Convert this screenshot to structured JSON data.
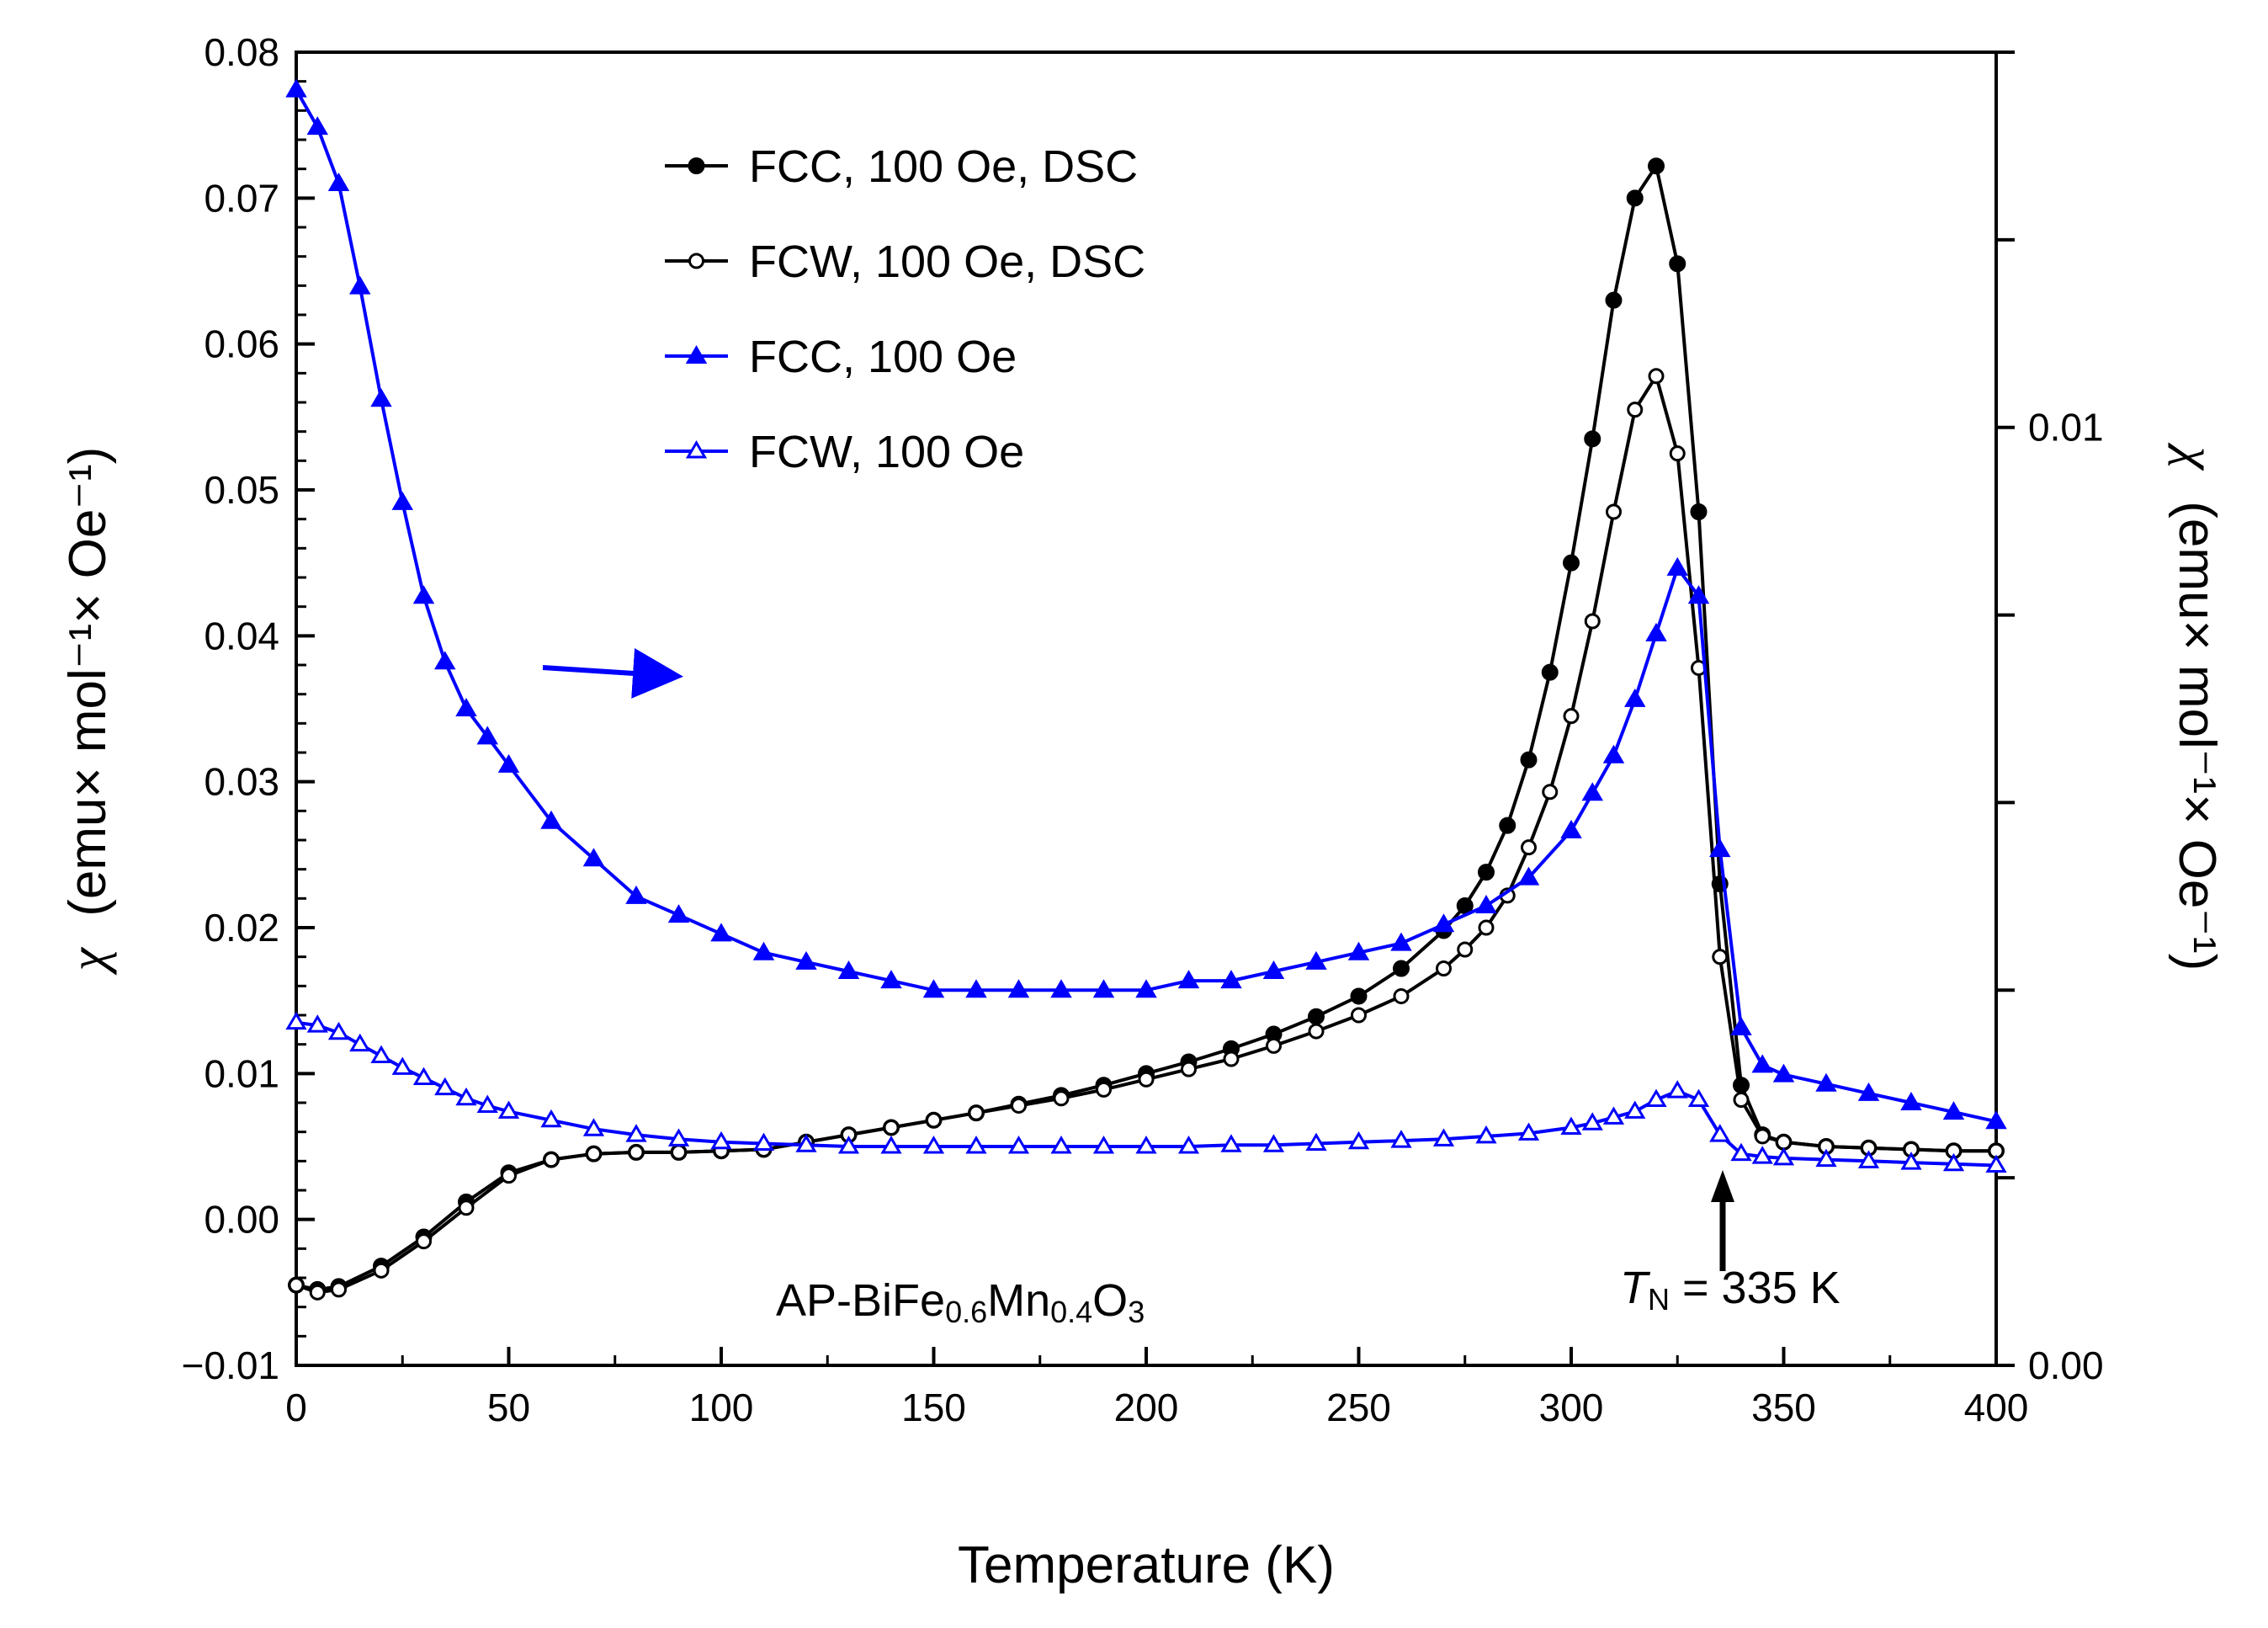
{
  "chart_data": {
    "type": "line",
    "title": "",
    "xlabel": "Temperature (K)",
    "ylabel_left": {
      "symbol": "χ",
      "text": "(emu× mol⁻¹× Oe⁻¹)"
    },
    "ylabel_right": {
      "symbol": "χ",
      "text": "(emu× mol⁻¹× Oe⁻¹)"
    },
    "xlim": [
      0,
      400
    ],
    "ylim_left": [
      -0.01,
      0.08
    ],
    "ylim_right": [
      0,
      0.014
    ],
    "xticks": [
      0,
      50,
      100,
      150,
      200,
      250,
      300,
      350,
      400
    ],
    "xtick_labels": [
      "0",
      "50",
      "100",
      "150",
      "200",
      "250",
      "300",
      "350",
      "400"
    ],
    "yticks_left": [
      -0.01,
      0,
      0.01,
      0.02,
      0.03,
      0.04,
      0.05,
      0.06,
      0.07,
      0.08
    ],
    "ytick_labels_left": [
      "−0.01",
      "0.00",
      "0.01",
      "0.02",
      "0.03",
      "0.04",
      "0.05",
      "0.06",
      "0.07",
      "0.08"
    ],
    "yticks_right": [
      0,
      0.01
    ],
    "ytick_labels_right": [
      "0.00",
      "0.01"
    ],
    "grid": false,
    "legend_position": "top-left",
    "series": [
      {
        "name": "FCC, 100 Oe, DSC",
        "axis": "left",
        "color": "#000000",
        "marker": "filled-circle",
        "x": [
          0,
          5,
          10,
          20,
          30,
          40,
          50,
          60,
          70,
          80,
          90,
          100,
          110,
          120,
          130,
          140,
          150,
          160,
          170,
          180,
          190,
          200,
          210,
          220,
          230,
          240,
          250,
          260,
          270,
          275,
          280,
          285,
          290,
          295,
          300,
          305,
          310,
          315,
          320,
          325,
          330,
          335,
          340,
          345,
          350,
          360,
          370,
          380,
          390,
          400
        ],
        "y": [
          -0.0045,
          -0.0048,
          -0.0046,
          -0.0032,
          -0.0012,
          0.0012,
          0.0032,
          0.0041,
          0.0045,
          0.0046,
          0.0046,
          0.0047,
          0.0048,
          0.0053,
          0.0058,
          0.0063,
          0.0068,
          0.0073,
          0.0079,
          0.0085,
          0.0092,
          0.01,
          0.0108,
          0.0117,
          0.0127,
          0.0139,
          0.0153,
          0.0172,
          0.0198,
          0.0215,
          0.0238,
          0.027,
          0.0315,
          0.0375,
          0.045,
          0.0535,
          0.063,
          0.07,
          0.0722,
          0.0655,
          0.0485,
          0.023,
          0.0092,
          0.0058,
          0.0053,
          0.005,
          0.0049,
          0.0048,
          0.0047,
          0.0047
        ]
      },
      {
        "name": "FCW, 100 Oe, DSC",
        "axis": "left",
        "color": "#000000",
        "marker": "open-circle",
        "x": [
          0,
          5,
          10,
          20,
          30,
          40,
          50,
          60,
          70,
          80,
          90,
          100,
          110,
          120,
          130,
          140,
          150,
          160,
          170,
          180,
          190,
          200,
          210,
          220,
          230,
          240,
          250,
          260,
          270,
          275,
          280,
          285,
          290,
          295,
          300,
          305,
          310,
          315,
          320,
          325,
          330,
          335,
          340,
          345,
          350,
          360,
          370,
          380,
          390,
          400
        ],
        "y": [
          -0.0045,
          -0.005,
          -0.0048,
          -0.0035,
          -0.0015,
          0.0008,
          0.003,
          0.0041,
          0.0045,
          0.0046,
          0.0046,
          0.0047,
          0.0048,
          0.0053,
          0.0058,
          0.0063,
          0.0068,
          0.0073,
          0.0078,
          0.0083,
          0.0089,
          0.0096,
          0.0103,
          0.011,
          0.0119,
          0.0129,
          0.014,
          0.0153,
          0.0172,
          0.0185,
          0.02,
          0.0222,
          0.0255,
          0.0293,
          0.0345,
          0.041,
          0.0485,
          0.0555,
          0.0578,
          0.0525,
          0.0378,
          0.018,
          0.0082,
          0.0057,
          0.0053,
          0.005,
          0.0049,
          0.0048,
          0.0047,
          0.0047
        ]
      },
      {
        "name": "FCC, 100 Oe",
        "axis": "right",
        "color": "#0000ff",
        "marker": "filled-triangle",
        "x": [
          0,
          5,
          10,
          15,
          20,
          25,
          30,
          35,
          40,
          45,
          50,
          60,
          70,
          80,
          90,
          100,
          110,
          120,
          130,
          140,
          150,
          160,
          170,
          180,
          190,
          200,
          210,
          220,
          230,
          240,
          250,
          260,
          270,
          280,
          290,
          300,
          305,
          310,
          315,
          320,
          325,
          330,
          335,
          340,
          345,
          350,
          360,
          370,
          380,
          390,
          400
        ],
        "y": [
          0.0136,
          0.0132,
          0.0126,
          0.0115,
          0.0103,
          0.0092,
          0.0082,
          0.0075,
          0.007,
          0.0067,
          0.0064,
          0.0058,
          0.0054,
          0.005,
          0.0048,
          0.0046,
          0.0044,
          0.0043,
          0.0042,
          0.0041,
          0.004,
          0.004,
          0.004,
          0.004,
          0.004,
          0.004,
          0.0041,
          0.0041,
          0.0042,
          0.0043,
          0.0044,
          0.0045,
          0.0047,
          0.0049,
          0.0052,
          0.0057,
          0.0061,
          0.0065,
          0.0071,
          0.0078,
          0.0085,
          0.0082,
          0.0055,
          0.0036,
          0.0032,
          0.0031,
          0.003,
          0.0029,
          0.0028,
          0.0027,
          0.0026
        ]
      },
      {
        "name": "FCW, 100 Oe",
        "axis": "left",
        "color": "#0000ff",
        "marker": "open-triangle",
        "x": [
          0,
          5,
          10,
          15,
          20,
          25,
          30,
          35,
          40,
          45,
          50,
          60,
          70,
          80,
          90,
          100,
          110,
          120,
          130,
          140,
          150,
          160,
          170,
          180,
          190,
          200,
          210,
          220,
          230,
          240,
          250,
          260,
          270,
          280,
          290,
          300,
          305,
          310,
          315,
          320,
          325,
          330,
          335,
          340,
          345,
          350,
          360,
          370,
          380,
          390,
          400
        ],
        "y": [
          0.0135,
          0.0133,
          0.0128,
          0.012,
          0.0112,
          0.0104,
          0.0097,
          0.009,
          0.0083,
          0.0078,
          0.0074,
          0.0068,
          0.0062,
          0.0058,
          0.0055,
          0.0053,
          0.0052,
          0.0051,
          0.005,
          0.005,
          0.005,
          0.005,
          0.005,
          0.005,
          0.005,
          0.005,
          0.005,
          0.0051,
          0.0051,
          0.0052,
          0.0053,
          0.0054,
          0.0055,
          0.0057,
          0.0059,
          0.0063,
          0.0066,
          0.007,
          0.0074,
          0.0082,
          0.0088,
          0.0082,
          0.0058,
          0.0045,
          0.0043,
          0.0042,
          0.0041,
          0.004,
          0.0039,
          0.0038,
          0.0037
        ]
      }
    ],
    "annotations": {
      "compound": {
        "prefix": "AP-BiFe",
        "sub1": "0.6",
        "mid": "Mn",
        "sub2": "0.4",
        "mid2": "O",
        "sub3": "3"
      },
      "neel": {
        "symbol": "T",
        "sub": "N",
        "text": " = 335 K",
        "x": 335
      },
      "right_arrow": "points to right axis"
    }
  }
}
